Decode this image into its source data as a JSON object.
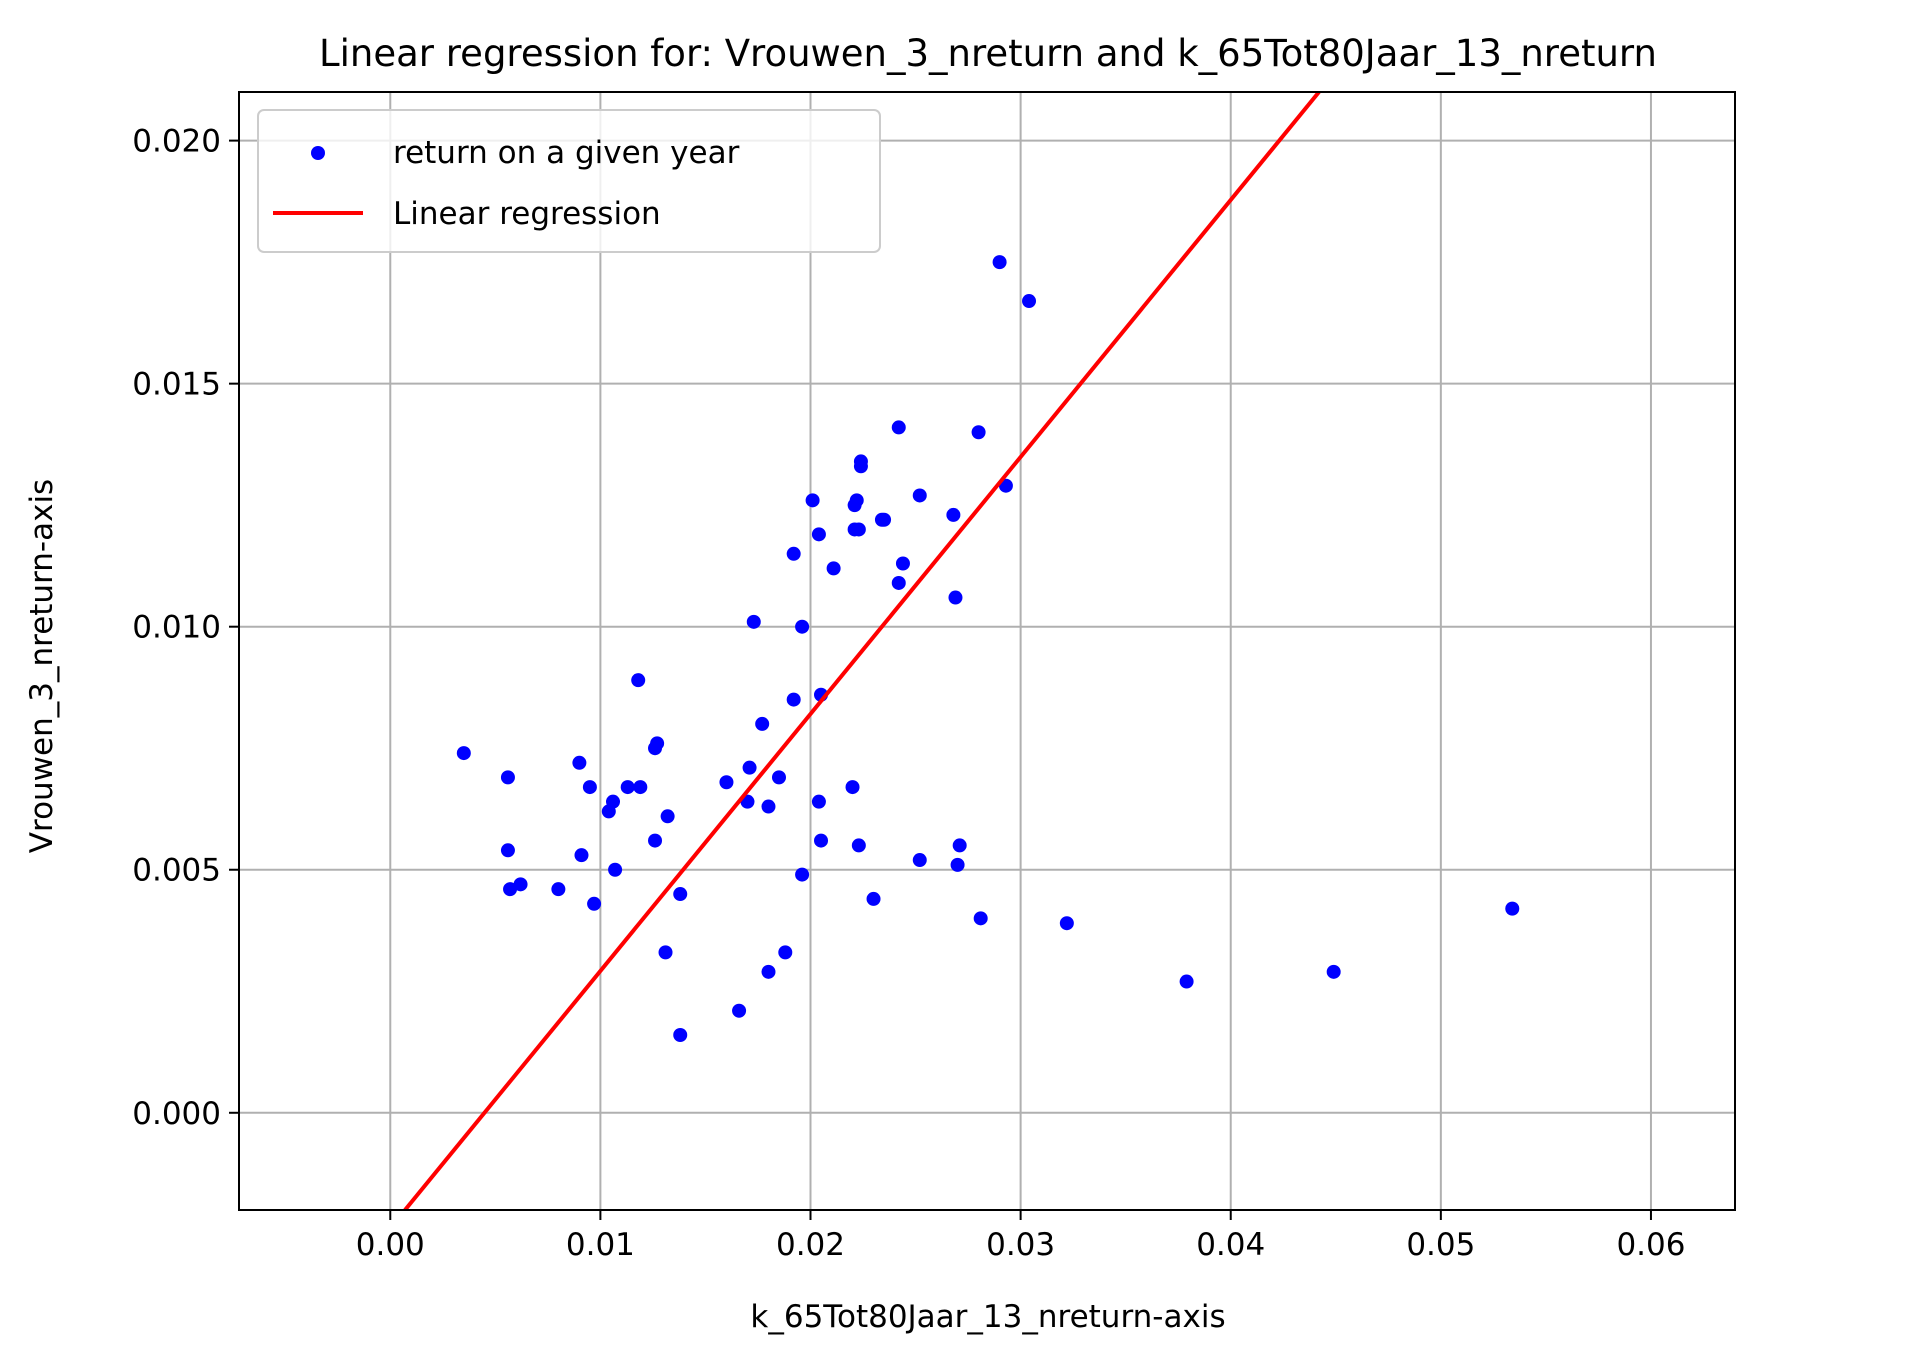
{
  "chart_data": {
    "type": "scatter",
    "title": "Linear regression for: Vrouwen_3_nreturn and k_65Tot80Jaar_13_nreturn",
    "xlabel": "k_65Tot80Jaar_13_nreturn-axis",
    "ylabel": "Vrouwen_3_nreturn-axis",
    "xlim": [
      -0.0072,
      0.064
    ],
    "ylim": [
      -0.002,
      0.021
    ],
    "xticks": [
      0.0,
      0.01,
      0.02,
      0.03,
      0.04,
      0.05,
      0.06
    ],
    "xtick_labels": [
      "0.00",
      "0.01",
      "0.02",
      "0.03",
      "0.04",
      "0.05",
      "0.06"
    ],
    "yticks": [
      0.0,
      0.005,
      0.01,
      0.015,
      0.02
    ],
    "ytick_labels": [
      "0.000",
      "0.005",
      "0.010",
      "0.015",
      "0.020"
    ],
    "grid": true,
    "legend_position": "top-left",
    "series": [
      {
        "name": "return on a given year",
        "kind": "scatter",
        "color": "#0000ff",
        "x": [
          0.029,
          0.0304,
          0.0242,
          0.028,
          0.0224,
          0.0224,
          0.0293,
          0.0201,
          0.0252,
          0.0221,
          0.0222,
          0.0268,
          0.0234,
          0.0235,
          0.0221,
          0.0223,
          0.0204,
          0.0192,
          0.0244,
          0.0211,
          0.0242,
          0.0269,
          0.0173,
          0.0196,
          0.0118,
          0.0205,
          0.0192,
          0.0177,
          0.0126,
          0.0127,
          0.0035,
          0.009,
          0.0056,
          0.0171,
          0.016,
          0.0185,
          0.0095,
          0.0113,
          0.0119,
          0.022,
          0.0106,
          0.017,
          0.0204,
          0.018,
          0.0104,
          0.0132,
          0.0205,
          0.0126,
          0.0056,
          0.0223,
          0.0271,
          0.0091,
          0.0252,
          0.027,
          0.0107,
          0.0196,
          0.0057,
          0.0062,
          0.008,
          0.0138,
          0.023,
          0.0097,
          0.0534,
          0.0281,
          0.0322,
          0.0131,
          0.0188,
          0.0449,
          0.018,
          0.0379,
          0.0166,
          0.0138
        ],
        "y": [
          0.0175,
          0.0167,
          0.0141,
          0.014,
          0.0134,
          0.0133,
          0.0129,
          0.0126,
          0.0127,
          0.0125,
          0.0126,
          0.0123,
          0.0122,
          0.0122,
          0.012,
          0.012,
          0.0119,
          0.0115,
          0.0113,
          0.0112,
          0.0109,
          0.0106,
          0.0101,
          0.01,
          0.0089,
          0.0086,
          0.0085,
          0.008,
          0.0075,
          0.0076,
          0.0074,
          0.0072,
          0.0069,
          0.0071,
          0.0068,
          0.0069,
          0.0067,
          0.0067,
          0.0067,
          0.0067,
          0.0064,
          0.0064,
          0.0064,
          0.0063,
          0.0062,
          0.0061,
          0.0056,
          0.0056,
          0.0054,
          0.0055,
          0.0055,
          0.0053,
          0.0052,
          0.0051,
          0.005,
          0.0049,
          0.0046,
          0.0047,
          0.0046,
          0.0045,
          0.0044,
          0.0043,
          0.0042,
          0.004,
          0.0039,
          0.0033,
          0.0033,
          0.0029,
          0.0029,
          0.0027,
          0.0021,
          0.0016
        ]
      },
      {
        "name": "Linear regression",
        "kind": "line",
        "color": "#ff0000",
        "x": [
          0.0007,
          0.0442
        ],
        "y": [
          -0.002,
          0.021
        ]
      }
    ]
  }
}
